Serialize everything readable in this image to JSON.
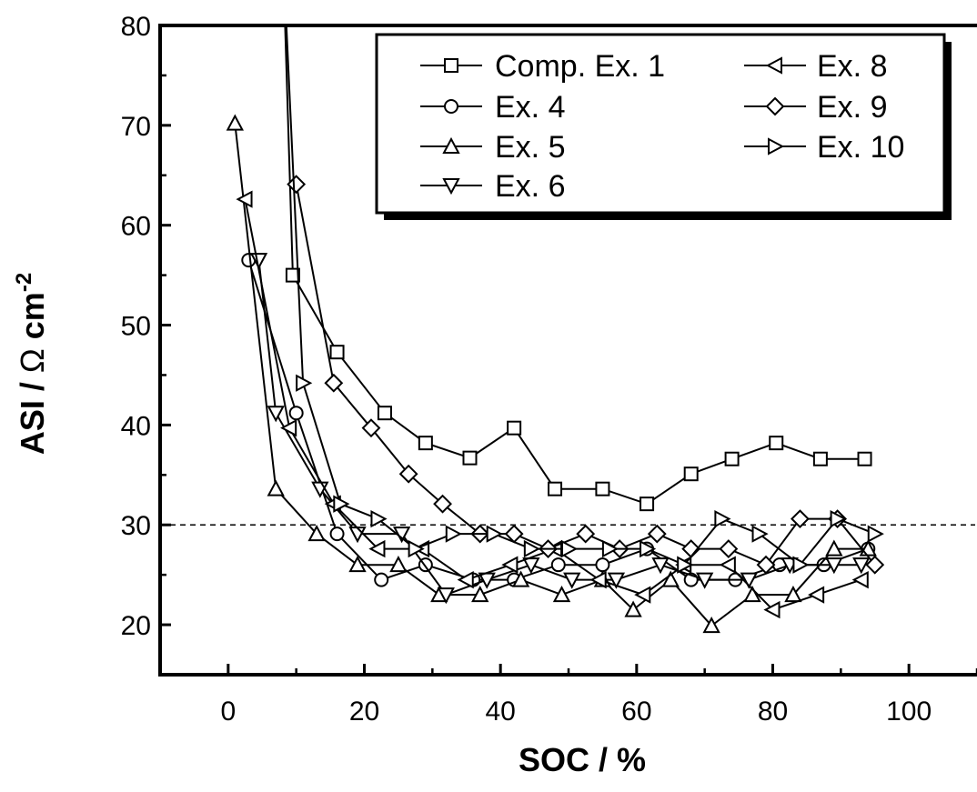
{
  "chart_data": {
    "type": "line",
    "xlabel": "SOC / %",
    "ylabel_main": "ASI / ",
    "ylabel_omega": "Ω",
    "ylabel_unit": " cm",
    "ylabel_sup": "-2",
    "xlim": [
      -10,
      110
    ],
    "ylim": [
      15,
      80
    ],
    "xticks": [
      0,
      20,
      40,
      60,
      80,
      100
    ],
    "xtick_labels": [
      "0",
      "20",
      "40",
      "60",
      "80",
      "100"
    ],
    "yticks": [
      20,
      30,
      40,
      50,
      60,
      70,
      80
    ],
    "ytick_labels": [
      "20",
      "30",
      "40",
      "50",
      "60",
      "70",
      "80"
    ],
    "reference_line": {
      "y": 30,
      "style": "dashed"
    },
    "grid": false,
    "legend_position": "top-right",
    "series": [
      {
        "name": "Comp. Ex. 1",
        "marker": "square",
        "x": [
          8,
          9.5,
          16,
          23,
          29,
          35.5,
          42,
          48,
          55,
          61.5,
          68,
          74,
          80.5,
          87,
          93.5
        ],
        "y": [
          88,
          55,
          47.3,
          41.2,
          38.2,
          36.7,
          39.7,
          33.6,
          33.6,
          32.1,
          35.1,
          36.6,
          38.2,
          36.6,
          36.6
        ]
      },
      {
        "name": "Ex. 4",
        "marker": "circle",
        "x": [
          3,
          10,
          16,
          22.5,
          29,
          36,
          42,
          48.5,
          55,
          61.5,
          68,
          74.5,
          81,
          87.5,
          94
        ],
        "y": [
          56.5,
          41.2,
          29.1,
          24.5,
          26,
          24.5,
          24.5,
          26,
          26,
          27.6,
          24.5,
          24.5,
          26,
          26,
          27.6
        ]
      },
      {
        "name": "Ex. 5",
        "marker": "triangle-up",
        "x": [
          1,
          7,
          13,
          19,
          25,
          31,
          37,
          43,
          49,
          55,
          59.5,
          65,
          71,
          77,
          83,
          89,
          94
        ],
        "y": [
          70.2,
          33.6,
          29.1,
          26,
          26,
          23,
          23,
          24.5,
          23,
          24.5,
          21.5,
          24.5,
          19.9,
          23,
          23,
          27.6,
          27.6
        ]
      },
      {
        "name": "Ex. 6",
        "marker": "triangle-down",
        "x": [
          4.5,
          7,
          13.5,
          19,
          25.5,
          32,
          38,
          44.5,
          50.5,
          57,
          63.5,
          70,
          76.5,
          82.5,
          89,
          93
        ],
        "y": [
          56.5,
          41.2,
          33.6,
          29.1,
          29.1,
          23,
          24.5,
          26,
          24.5,
          24.5,
          26,
          24.5,
          24.5,
          26,
          26,
          26
        ]
      },
      {
        "name": "Ex. 8",
        "marker": "triangle-left",
        "x": [
          2.5,
          9,
          15.5,
          22,
          28.5,
          35,
          41.5,
          48,
          54.5,
          61,
          67,
          73.5,
          80,
          86.5,
          93
        ],
        "y": [
          62.6,
          39.7,
          32.1,
          27.6,
          27.6,
          24.5,
          26,
          27.6,
          24.5,
          23,
          26,
          26,
          21.5,
          23,
          24.5
        ]
      },
      {
        "name": "Ex. 9",
        "marker": "diamond",
        "x": [
          10,
          15.5,
          21,
          26.5,
          31.5,
          37,
          42,
          47,
          52.5,
          57.5,
          63,
          68,
          73.5,
          79,
          84,
          89.5,
          95
        ],
        "y": [
          64.1,
          44.2,
          39.7,
          35.1,
          32.1,
          29.1,
          29.1,
          27.6,
          29.1,
          27.6,
          29.1,
          27.6,
          27.6,
          26,
          30.6,
          30.6,
          26
        ]
      },
      {
        "name": "Ex. 10",
        "marker": "triangle-right",
        "x": [
          8,
          11,
          16.5,
          22,
          27.5,
          33,
          39,
          44.5,
          50,
          56,
          61.5,
          67,
          72.5,
          78,
          84,
          89.5,
          95
        ],
        "y": [
          88,
          44.2,
          32.1,
          30.6,
          27.6,
          29.1,
          29.1,
          27.6,
          27.6,
          27.6,
          27.6,
          26,
          30.6,
          29.1,
          26,
          30.6,
          29.1
        ]
      }
    ]
  }
}
